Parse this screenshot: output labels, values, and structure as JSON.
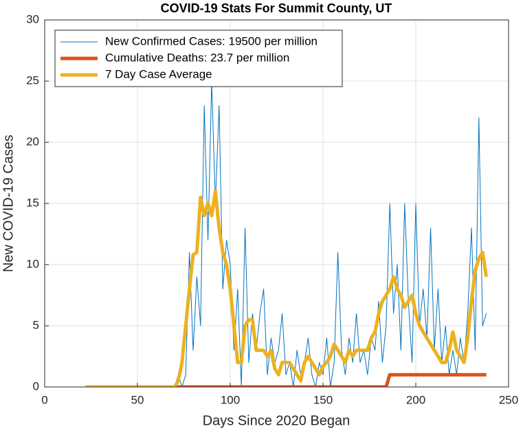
{
  "chart_data": {
    "type": "line",
    "title": "COVID-19 Stats For Summit County, UT",
    "xlabel": "Days Since 2020 Began",
    "ylabel": "New COVID-19 Cases",
    "x": [
      22,
      24,
      26,
      28,
      30,
      32,
      34,
      36,
      38,
      40,
      42,
      44,
      46,
      48,
      50,
      52,
      54,
      56,
      58,
      60,
      62,
      64,
      66,
      68,
      70,
      72,
      74,
      76,
      78,
      80,
      82,
      84,
      86,
      88,
      90,
      92,
      94,
      96,
      98,
      100,
      102,
      104,
      106,
      108,
      110,
      112,
      114,
      116,
      118,
      120,
      122,
      124,
      126,
      128,
      130,
      132,
      134,
      136,
      138,
      140,
      142,
      144,
      146,
      148,
      150,
      152,
      154,
      156,
      158,
      160,
      162,
      164,
      166,
      168,
      170,
      172,
      174,
      176,
      178,
      180,
      182,
      184,
      186,
      188,
      190,
      192,
      194,
      196,
      198,
      200,
      202,
      204,
      206,
      208,
      210,
      212,
      214,
      216,
      218,
      220,
      222,
      224,
      226,
      228,
      230,
      232,
      234,
      236,
      238
    ],
    "series": [
      {
        "name": "New Confirmed Cases: 19500 per million",
        "color": "#0072BD",
        "width": 1,
        "values": [
          0,
          0,
          0,
          0,
          0,
          0,
          0,
          0,
          0,
          0,
          0,
          0,
          0,
          0,
          0,
          0,
          0,
          0,
          0,
          0,
          0,
          0,
          0,
          0,
          0,
          1,
          0,
          1,
          11,
          3,
          9,
          5,
          23,
          12,
          25,
          15,
          23,
          8,
          12,
          10,
          3,
          8,
          0,
          13,
          2,
          6,
          3,
          6,
          8,
          1,
          4,
          2,
          3,
          6,
          1,
          2,
          0,
          3,
          1,
          2,
          4,
          1,
          0,
          2,
          1,
          4,
          0,
          2,
          11,
          3,
          1,
          4,
          2,
          6,
          2,
          3,
          1,
          4,
          3,
          7,
          2,
          5,
          15,
          6,
          10,
          3,
          15,
          7,
          2,
          15,
          5,
          8,
          4,
          13,
          3,
          8,
          2,
          5,
          1,
          3,
          1,
          4,
          2,
          6,
          13,
          3,
          22,
          5,
          6
        ]
      },
      {
        "name": "Cumulative Deaths: 23.7 per million",
        "color": "#D95319",
        "width": 5,
        "values": [
          0,
          0,
          0,
          0,
          0,
          0,
          0,
          0,
          0,
          0,
          0,
          0,
          0,
          0,
          0,
          0,
          0,
          0,
          0,
          0,
          0,
          0,
          0,
          0,
          0,
          0,
          0,
          0,
          0,
          0,
          0,
          0,
          0,
          0,
          0,
          0,
          0,
          0,
          0,
          0,
          0,
          0,
          0,
          0,
          0,
          0,
          0,
          0,
          0,
          0,
          0,
          0,
          0,
          0,
          0,
          0,
          0,
          0,
          0,
          0,
          0,
          0,
          0,
          0,
          0,
          0,
          0,
          0,
          0,
          0,
          0,
          0,
          0,
          0,
          0,
          0,
          0,
          0,
          0,
          0,
          0,
          0,
          1,
          1,
          1,
          1,
          1,
          1,
          1,
          1,
          1,
          1,
          1,
          1,
          1,
          1,
          1,
          1,
          1,
          1,
          1,
          1,
          1,
          1,
          1,
          1,
          1,
          1,
          1
        ]
      },
      {
        "name": "7 Day Case Average",
        "color": "#EDB120",
        "width": 5,
        "values": [
          0,
          0,
          0,
          0,
          0,
          0,
          0,
          0,
          0,
          0,
          0,
          0,
          0,
          0,
          0,
          0,
          0,
          0,
          0,
          0,
          0,
          0,
          0,
          0,
          0,
          0.5,
          2,
          5,
          8,
          10.8,
          11,
          15.5,
          14,
          15,
          14,
          16,
          13,
          11,
          10,
          8,
          5,
          2,
          2,
          5,
          5.5,
          5.5,
          3,
          3,
          3,
          2.5,
          3,
          1.5,
          1,
          2,
          2,
          2,
          1.5,
          1,
          0.5,
          2,
          2.5,
          2,
          1.5,
          1,
          1.7,
          2,
          2.5,
          3.5,
          3,
          2.5,
          2,
          3,
          2.5,
          3,
          3,
          3,
          3,
          4,
          4.5,
          6,
          7,
          7.5,
          8,
          9,
          8,
          7.5,
          6.5,
          7,
          7.5,
          6,
          5,
          4.5,
          4,
          3.5,
          3,
          2.5,
          2,
          2,
          3,
          4.5,
          3,
          2.5,
          2,
          4,
          7,
          9.5,
          10.5,
          11,
          9
        ]
      }
    ],
    "xlim": [
      0,
      250
    ],
    "ylim": [
      0,
      30
    ],
    "xticks": [
      0,
      50,
      100,
      150,
      200,
      250
    ],
    "yticks": [
      0,
      5,
      10,
      15,
      20,
      25,
      30
    ],
    "grid": true,
    "legend": "upper-left"
  }
}
